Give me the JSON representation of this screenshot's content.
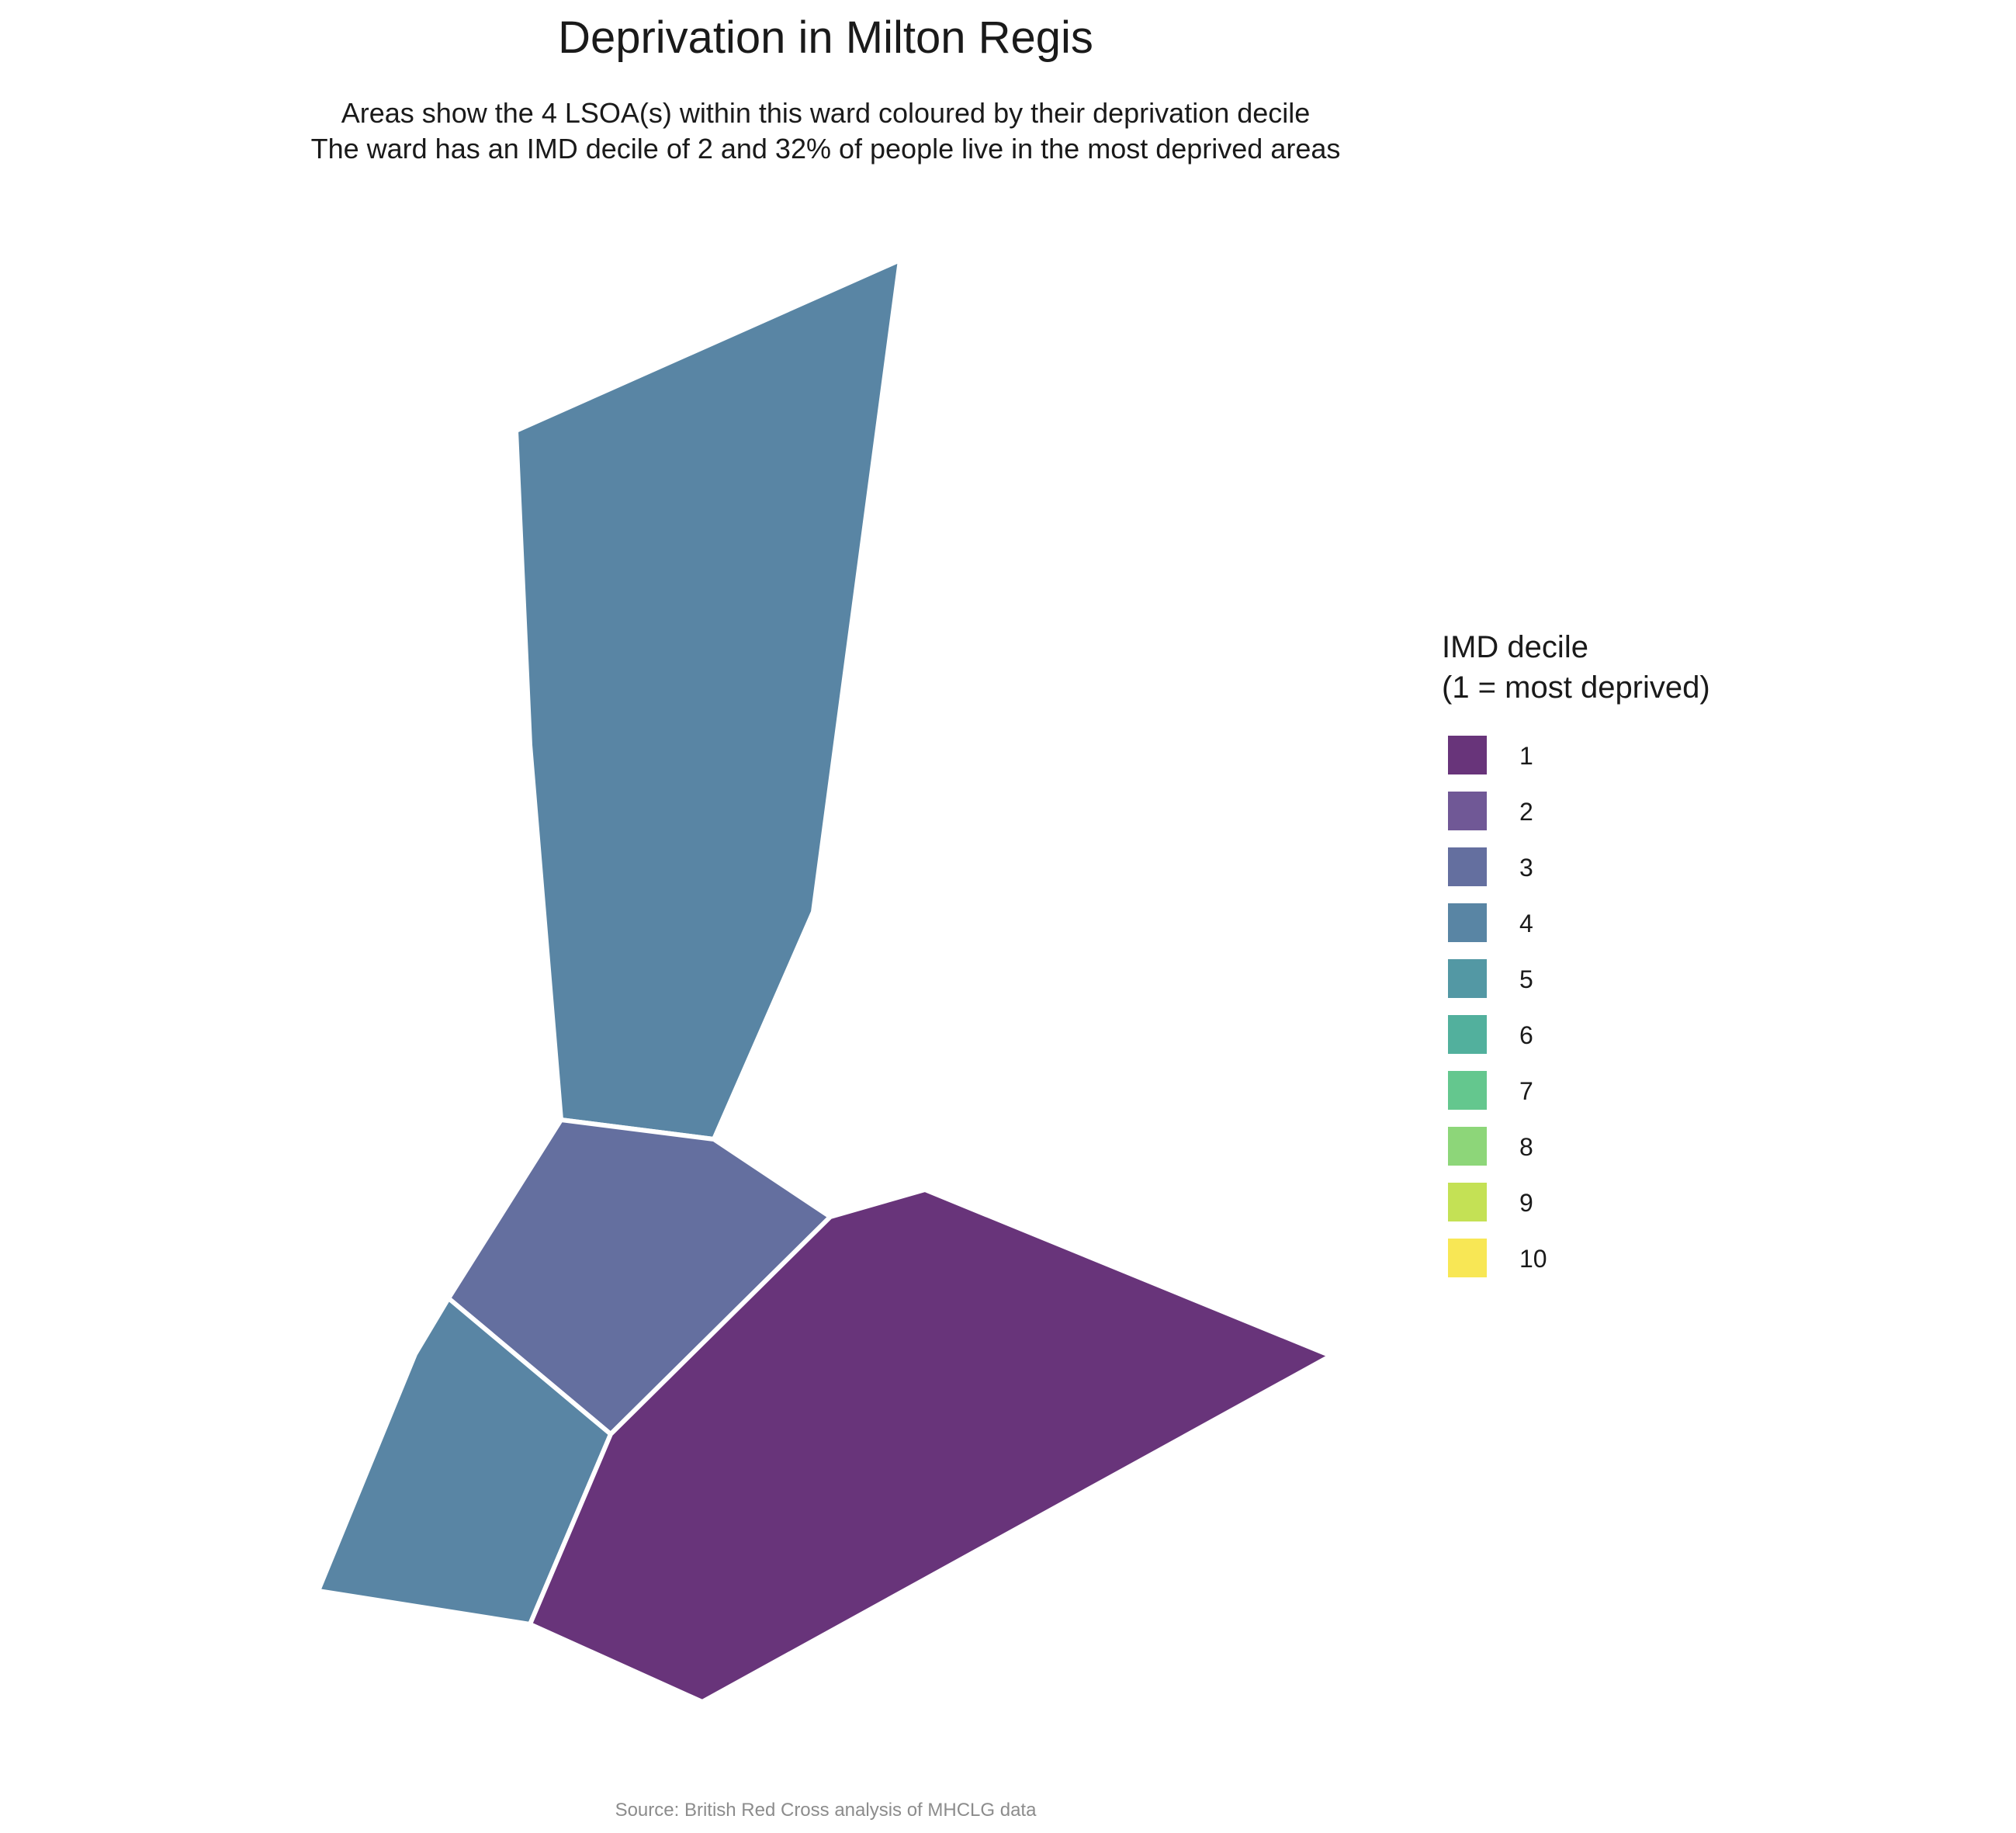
{
  "title": "Deprivation in Milton Regis",
  "subtitle_line1": "Areas show the 4 LSOA(s) within this ward coloured by their deprivation decile",
  "subtitle_line2": "The ward has an IMD decile of 2 and 32% of people live in the most deprived areas",
  "legend": {
    "title_line1": "IMD decile",
    "title_line2": "(1 = most deprived)",
    "items": [
      {
        "label": "1",
        "color": "#68347a"
      },
      {
        "label": "2",
        "color": "#705896"
      },
      {
        "label": "3",
        "color": "#646f9f"
      },
      {
        "label": "4",
        "color": "#5985a4"
      },
      {
        "label": "5",
        "color": "#5398a4"
      },
      {
        "label": "6",
        "color": "#52b09d"
      },
      {
        "label": "7",
        "color": "#64c78e"
      },
      {
        "label": "8",
        "color": "#8dd679"
      },
      {
        "label": "9",
        "color": "#c4e155"
      },
      {
        "label": "10",
        "color": "#f8e755"
      }
    ]
  },
  "map": {
    "areas": [
      {
        "name": "lsoa-north",
        "decile": 4
      },
      {
        "name": "lsoa-centre",
        "decile": 3
      },
      {
        "name": "lsoa-southwest",
        "decile": 4
      },
      {
        "name": "lsoa-southeast",
        "decile": 1
      }
    ]
  },
  "caption": "Source: British Red Cross analysis of MHCLG data"
}
